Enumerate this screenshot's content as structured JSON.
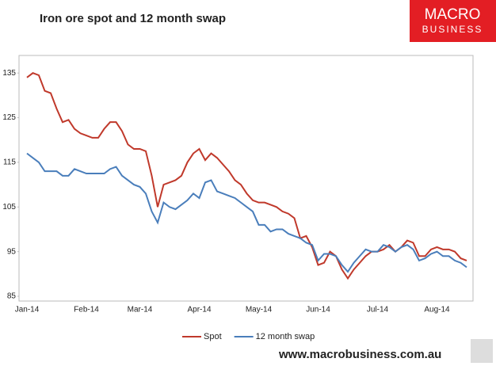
{
  "chart_data": {
    "type": "line",
    "title": "Iron ore spot and 12 month swap",
    "categories": [
      "Jan-14",
      null,
      null,
      null,
      null,
      null,
      null,
      null,
      null,
      null,
      "Feb-14",
      null,
      null,
      null,
      null,
      null,
      null,
      null,
      null,
      "Mar-14",
      null,
      null,
      null,
      null,
      null,
      null,
      null,
      null,
      null,
      "Apr-14",
      null,
      null,
      null,
      null,
      null,
      null,
      null,
      null,
      null,
      "May-14",
      null,
      null,
      null,
      null,
      null,
      null,
      null,
      null,
      null,
      "Jun-14",
      null,
      null,
      null,
      null,
      null,
      null,
      null,
      null,
      null,
      "Jul-14",
      null,
      null,
      null,
      null,
      null,
      null,
      null,
      null,
      null,
      "Aug-14",
      null,
      null,
      null,
      null,
      null
    ],
    "series": [
      {
        "name": "Spot",
        "color": "#c0392b",
        "values": [
          134,
          135,
          134.5,
          131,
          130.5,
          127,
          124,
          124.5,
          122.5,
          121.5,
          121,
          120.5,
          120.5,
          122.5,
          124,
          124,
          122,
          119,
          118,
          118,
          117.5,
          112,
          105,
          110,
          110.5,
          111,
          112,
          115,
          117,
          118,
          115.5,
          117,
          116,
          114.5,
          113,
          111,
          110,
          108,
          106.5,
          106,
          106,
          105.5,
          105,
          104,
          103.5,
          102.5,
          98,
          98.5,
          96,
          92,
          92.5,
          95,
          94,
          91,
          89,
          91,
          92.5,
          94,
          95,
          95,
          95.5,
          96.5,
          95,
          96,
          97.5,
          97,
          94,
          94,
          95.5,
          96,
          95.5,
          95.5,
          95,
          93.5,
          93
        ]
      },
      {
        "name": "12 month swap",
        "color": "#4a7ebb",
        "values": [
          117,
          116,
          115,
          113,
          113,
          113,
          112,
          112,
          113.5,
          113,
          112.5,
          112.5,
          112.5,
          112.5,
          113.5,
          114,
          112,
          111,
          110,
          109.5,
          108,
          104,
          101.5,
          106,
          105,
          104.5,
          105.5,
          106.5,
          108,
          107,
          110.5,
          111,
          108.5,
          108,
          107.5,
          107,
          106,
          105,
          104,
          101,
          101,
          99.5,
          100,
          100,
          99,
          98.5,
          98,
          97,
          96.5,
          93,
          94.5,
          94.5,
          94,
          92,
          90.5,
          92.5,
          94,
          95.5,
          95,
          95,
          96.5,
          96,
          95,
          96,
          96.5,
          95.5,
          93,
          93.5,
          94.5,
          95,
          94,
          94,
          93,
          92.5,
          91.5
        ]
      }
    ],
    "ylim": [
      85,
      140
    ],
    "yticks": [
      85,
      95,
      105,
      115,
      125,
      135
    ],
    "grid": false,
    "legend": "bottom"
  },
  "logo": {
    "line1": "MACRO",
    "line2": "BUSINESS"
  },
  "footer": "www.macrobusiness.com.au"
}
